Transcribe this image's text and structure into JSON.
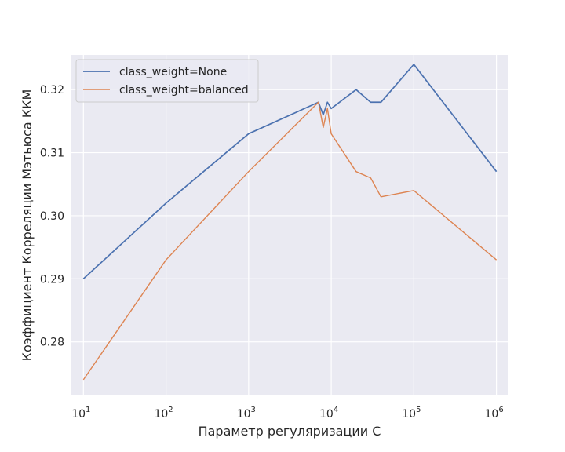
{
  "chart_data": {
    "type": "line",
    "title": "",
    "xlabel": "Параметр регуляризации C",
    "ylabel": "Коэффициент Корреляции Мэтьюса ККМ",
    "xscale": "log",
    "xlim": [
      7,
      1400000
    ],
    "ylim": [
      0.2715,
      0.3255
    ],
    "xticks": [
      {
        "value": 10,
        "base": "10",
        "exp": "1"
      },
      {
        "value": 100,
        "base": "10",
        "exp": "2"
      },
      {
        "value": 1000,
        "base": "10",
        "exp": "3"
      },
      {
        "value": 10000,
        "base": "10",
        "exp": "4"
      },
      {
        "value": 100000,
        "base": "10",
        "exp": "5"
      },
      {
        "value": 1000000,
        "base": "10",
        "exp": "6"
      }
    ],
    "yticks": [
      {
        "value": 0.28,
        "label": "0.28"
      },
      {
        "value": 0.29,
        "label": "0.29"
      },
      {
        "value": 0.3,
        "label": "0.30"
      },
      {
        "value": 0.31,
        "label": "0.31"
      },
      {
        "value": 0.32,
        "label": "0.32"
      }
    ],
    "grid": true,
    "legend_position": "top-left",
    "series": [
      {
        "name": "class_weight=None",
        "color": "#4c72b0",
        "x": [
          10,
          100,
          1000,
          7000,
          8000,
          9000,
          10000,
          20000,
          30000,
          40000,
          100000,
          1000000
        ],
        "y": [
          0.29,
          0.302,
          0.313,
          0.318,
          0.316,
          0.318,
          0.317,
          0.32,
          0.318,
          0.318,
          0.324,
          0.307
        ]
      },
      {
        "name": "class_weight=balanced",
        "color": "#dd8452",
        "x": [
          10,
          100,
          1000,
          7000,
          8000,
          9000,
          10000,
          20000,
          30000,
          40000,
          100000,
          1000000
        ],
        "y": [
          0.274,
          0.293,
          0.307,
          0.318,
          0.314,
          0.317,
          0.313,
          0.307,
          0.306,
          0.303,
          0.304,
          0.293
        ]
      }
    ]
  }
}
